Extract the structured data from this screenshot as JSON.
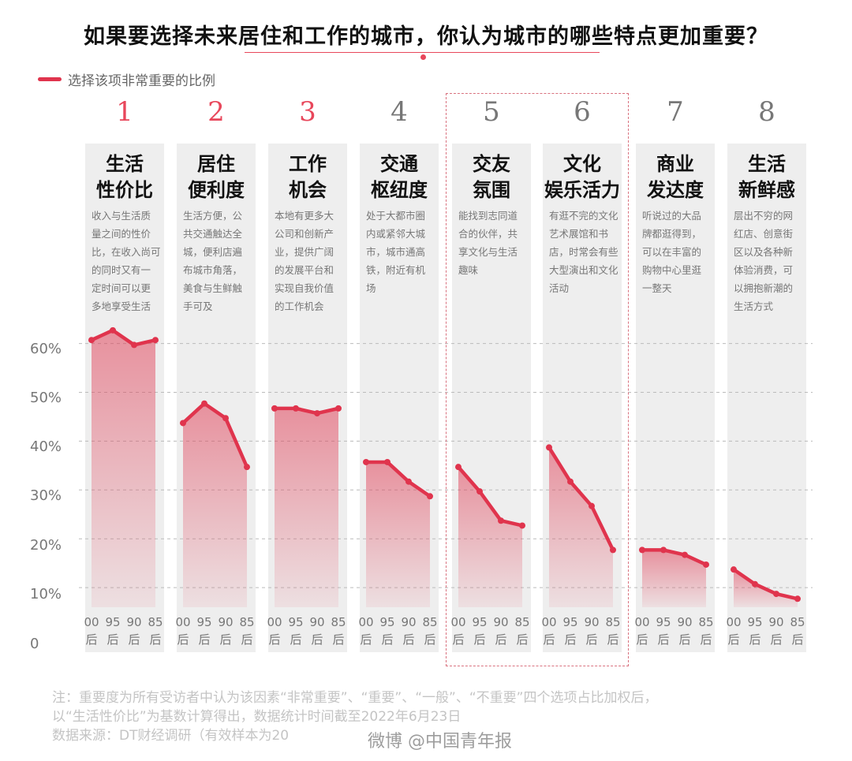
{
  "title": "如果要选择未来居住和工作的城市，你认为城市的哪些特点更加重要？",
  "legend_label": "选择该项非常重要的比例",
  "footnote": {
    "line1": "注：重要度为所有受访者中认为该因素“非常重要”、“重要”、“一般”、“不重要”四个选项占比加权后，",
    "line2": "以“生活性价比”为基数计算得出，数据统计时间截至2022年6月23日",
    "line3": "数据来源：DT财经调研（有效样本为20"
  },
  "watermark": "微博 @中国青年报",
  "colors": {
    "accent": "#e0344d",
    "rank_top": "#e8475b",
    "rank_other": "#777777",
    "column_bg": "#eeeeee"
  },
  "chart_data": {
    "type": "line",
    "title": "如果要选择未来居住和工作的城市，你认为城市的哪些特点更加重要？",
    "legend": "选择该项非常重要的比例",
    "y_ticks": [
      "60%",
      "50%",
      "40%",
      "30%",
      "20%",
      "10%",
      "0"
    ],
    "ylim": [
      0,
      0.65
    ],
    "generations": [
      [
        "00",
        "后"
      ],
      [
        "95",
        "后"
      ],
      [
        "90",
        "后"
      ],
      [
        "85",
        "后"
      ]
    ],
    "grid": true,
    "highlight": [
      5,
      6
    ],
    "categories": [
      {
        "rank": "1",
        "name": "生活\n性价比",
        "desc": [
          "收入与生活质",
          "量之间的性价",
          "比，在收入尚可",
          "的同时又有一",
          "定时间可以更",
          "多地享受生活"
        ],
        "values": [
          0.62,
          0.64,
          0.61,
          0.62
        ]
      },
      {
        "rank": "2",
        "name": "居住\n便利度",
        "desc": [
          "生活方便，公",
          "共交通触达全",
          "城，便利店遍",
          "布城市角落，",
          "美食与生鲜触",
          "手可及"
        ],
        "values": [
          0.45,
          0.49,
          0.46,
          0.36
        ]
      },
      {
        "rank": "3",
        "name": "工作\n机会",
        "desc": [
          "本地有更多大",
          "公司和创新产",
          "业，提供广阔",
          "的发展平台和",
          "实现自我价值",
          "的工作机会"
        ],
        "values": [
          0.48,
          0.48,
          0.47,
          0.48
        ]
      },
      {
        "rank": "4",
        "name": "交通\n枢纽度",
        "desc": [
          "处于大都市圈",
          "内或紧邻大城",
          "市，城市通高",
          "铁，附近有机",
          "场"
        ],
        "values": [
          0.37,
          0.37,
          0.33,
          0.3
        ]
      },
      {
        "rank": "5",
        "name": "交友\n氛围",
        "desc": [
          "能找到志同道",
          "合的伙伴，共",
          "享文化与生活",
          "趣味"
        ],
        "values": [
          0.36,
          0.31,
          0.25,
          0.24
        ]
      },
      {
        "rank": "6",
        "name": "文化\n娱乐活力",
        "desc": [
          "有逛不完的文化",
          "艺术展馆和书",
          "店，时常会有些",
          "大型演出和文化",
          "活动"
        ],
        "values": [
          0.4,
          0.33,
          0.28,
          0.19
        ]
      },
      {
        "rank": "7",
        "name": "商业\n发达度",
        "desc": [
          "听说过的大品",
          "牌都逛得到，",
          "可以在丰富的",
          "购物中心里逛",
          "一整天"
        ],
        "values": [
          0.19,
          0.19,
          0.18,
          0.16
        ]
      },
      {
        "rank": "8",
        "name": "生活\n新鲜感",
        "desc": [
          "层出不穷的网",
          "红店、创意街",
          "区以及各种新",
          "体验消费，可",
          "以拥抱新潮的",
          "生活方式"
        ],
        "values": [
          0.15,
          0.12,
          0.1,
          0.09
        ]
      }
    ]
  }
}
